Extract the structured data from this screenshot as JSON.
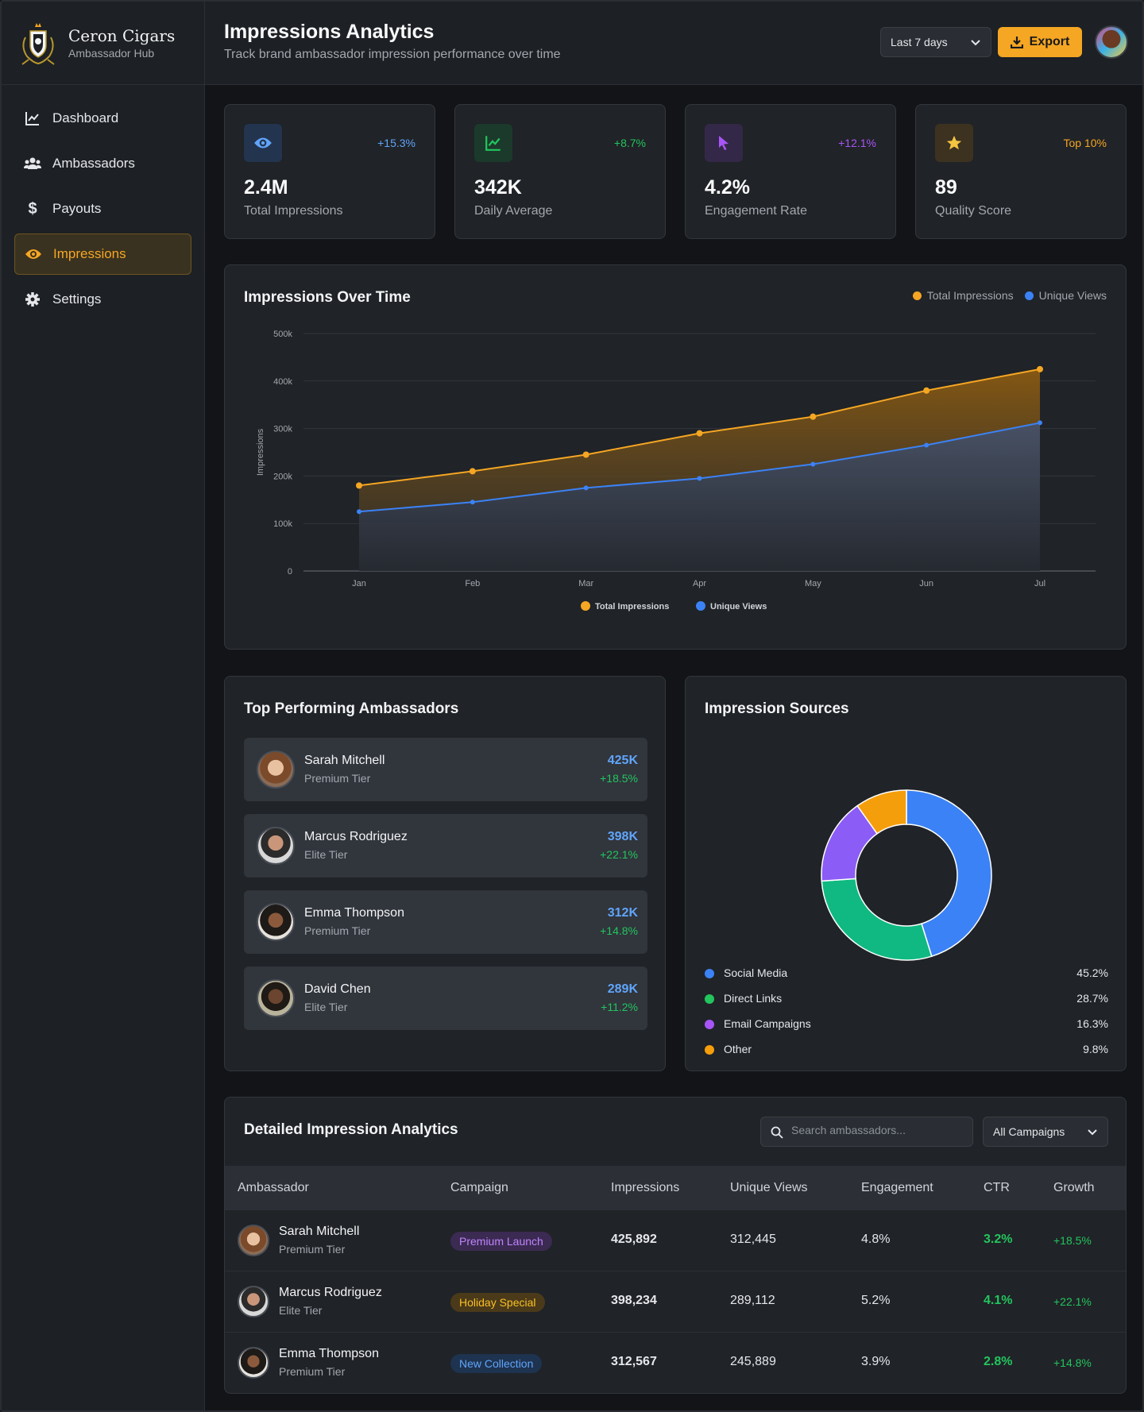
{
  "brand": {
    "name": "Ceron Cigars",
    "subtitle": "Ambassador Hub"
  },
  "sidebar": {
    "items": [
      {
        "label": "Dashboard",
        "icon": "chart-line-icon"
      },
      {
        "label": "Ambassadors",
        "icon": "users-icon"
      },
      {
        "label": "Payouts",
        "icon": "dollar-icon"
      },
      {
        "label": "Impressions",
        "icon": "eye-icon",
        "active": true
      },
      {
        "label": "Settings",
        "icon": "gear-icon"
      }
    ]
  },
  "header": {
    "title": "Impressions Analytics",
    "subtitle": "Track brand ambassador impression performance over time",
    "range": "Last 7 days",
    "export_label": "Export"
  },
  "stats": [
    {
      "value": "2.4M",
      "label": "Total Impressions",
      "delta": "+15.3%",
      "icon": "eye-icon",
      "color": "#60a5fa"
    },
    {
      "value": "342K",
      "label": "Daily Average",
      "delta": "+8.7%",
      "icon": "chart-line-icon",
      "color": "#22c55e"
    },
    {
      "value": "4.2%",
      "label": "Engagement Rate",
      "delta": "+12.1%",
      "icon": "cursor-icon",
      "color": "#a855f7"
    },
    {
      "value": "89",
      "label": "Quality Score",
      "delta": "Top 10%",
      "icon": "star-icon",
      "color": "#f5a623"
    }
  ],
  "line_chart": {
    "title": "Impressions Over Time",
    "legend_top": [
      "Total Impressions",
      "Unique Views"
    ],
    "legend_bottom": [
      "Total Impressions",
      "Unique Views"
    ]
  },
  "chart_data": [
    {
      "type": "area",
      "title": "Impressions Over Time",
      "xlabel": "",
      "ylabel": "Impressions",
      "categories": [
        "Jan",
        "Feb",
        "Mar",
        "Apr",
        "May",
        "Jun",
        "Jul"
      ],
      "ylim": [
        0,
        500000
      ],
      "yticks": [
        "0",
        "100k",
        "200k",
        "300k",
        "400k",
        "500k"
      ],
      "grid": true,
      "legend": "top-right and bottom",
      "series": [
        {
          "name": "Total Impressions",
          "color": "#f5a623",
          "values": [
            180000,
            210000,
            245000,
            290000,
            325000,
            380000,
            425000
          ]
        },
        {
          "name": "Unique Views",
          "color": "#3b82f6",
          "values": [
            125000,
            145000,
            175000,
            195000,
            225000,
            265000,
            312000
          ]
        }
      ]
    },
    {
      "type": "pie",
      "title": "Impression Sources",
      "donut": true,
      "labels": [
        "Social Media",
        "Direct Links",
        "Email Campaigns",
        "Other"
      ],
      "values": [
        45.2,
        28.7,
        16.3,
        9.8
      ],
      "colors": [
        "#3b82f6",
        "#10b981",
        "#8b5cf6",
        "#f59e0b"
      ],
      "legend": "bottom"
    }
  ],
  "top_ambassadors": {
    "title": "Top Performing Ambassadors",
    "items": [
      {
        "name": "Sarah Mitchell",
        "tier": "Premium Tier",
        "value": "425K",
        "growth": "+18.5%"
      },
      {
        "name": "Marcus Rodriguez",
        "tier": "Elite Tier",
        "value": "398K",
        "growth": "+22.1%"
      },
      {
        "name": "Emma Thompson",
        "tier": "Premium Tier",
        "value": "312K",
        "growth": "+14.8%"
      },
      {
        "name": "David Chen",
        "tier": "Elite Tier",
        "value": "289K",
        "growth": "+11.2%"
      }
    ]
  },
  "sources": {
    "title": "Impression Sources",
    "items": [
      {
        "label": "Social Media",
        "pct": "45.2%"
      },
      {
        "label": "Direct Links",
        "pct": "28.7%"
      },
      {
        "label": "Email Campaigns",
        "pct": "16.3%"
      },
      {
        "label": "Other",
        "pct": "9.8%"
      }
    ]
  },
  "table": {
    "title": "Detailed Impression Analytics",
    "search_placeholder": "Search ambassadors...",
    "campaign_filter": "All Campaigns",
    "columns": [
      "Ambassador",
      "Campaign",
      "Impressions",
      "Unique Views",
      "Engagement",
      "CTR",
      "Growth"
    ],
    "rows": [
      {
        "name": "Sarah Mitchell",
        "tier": "Premium Tier",
        "campaign": "Premium Launch",
        "impressions": "425,892",
        "unique": "312,445",
        "engagement": "4.8%",
        "ctr": "3.2%",
        "growth": "+18.5%"
      },
      {
        "name": "Marcus Rodriguez",
        "tier": "Elite Tier",
        "campaign": "Holiday Special",
        "impressions": "398,234",
        "unique": "289,112",
        "engagement": "5.2%",
        "ctr": "4.1%",
        "growth": "+22.1%"
      },
      {
        "name": "Emma Thompson",
        "tier": "Premium Tier",
        "campaign": "New Collection",
        "impressions": "312,567",
        "unique": "245,889",
        "engagement": "3.9%",
        "ctr": "2.8%",
        "growth": "+14.8%"
      }
    ]
  }
}
